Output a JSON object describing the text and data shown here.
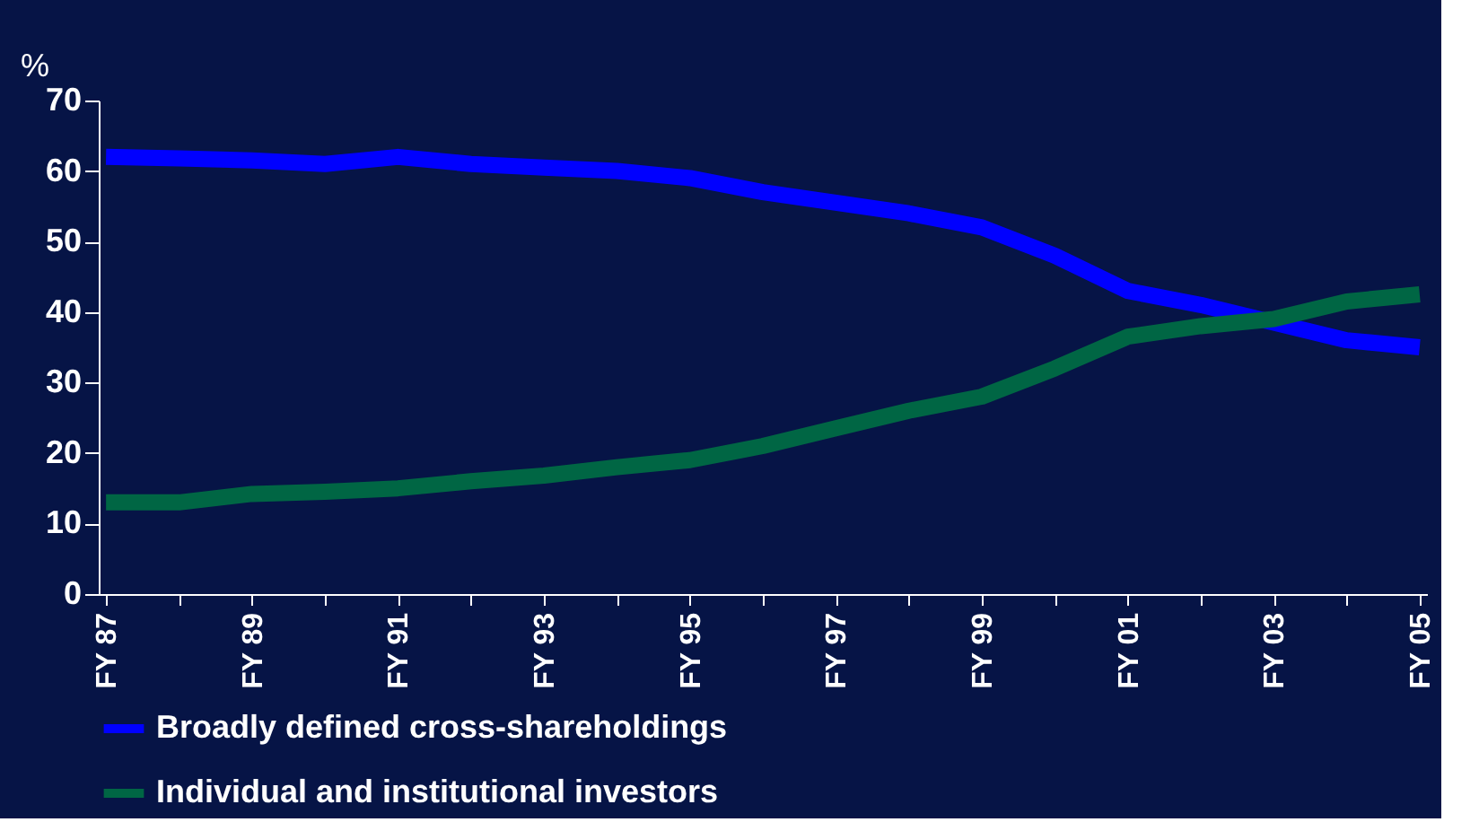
{
  "chart_data": {
    "type": "line",
    "ylabel": "%",
    "categories": [
      "FY 87",
      null,
      "FY 89",
      null,
      "FY 91",
      null,
      "FY 93",
      null,
      "FY 95",
      null,
      "FY 97",
      null,
      "FY 99",
      null,
      "FY 01",
      null,
      "FY 03",
      null,
      "FY 05"
    ],
    "series": [
      {
        "name": "Broadly defined cross-shareholdings",
        "color": "#0000ff",
        "values": [
          62,
          61.8,
          61.5,
          61,
          62,
          61,
          60.5,
          60,
          59,
          57,
          55.5,
          54,
          52,
          48,
          43,
          41,
          38.5,
          36,
          35
        ]
      },
      {
        "name": "Individual and institutional investors",
        "color": "#006644",
        "values": [
          13,
          13,
          14.2,
          14.5,
          15,
          16,
          16.8,
          18,
          19,
          21,
          23.5,
          26,
          28,
          32,
          36.5,
          38,
          39,
          41.5,
          42.5
        ]
      }
    ],
    "ylim": [
      0,
      70
    ],
    "yticks": [
      0,
      10,
      20,
      30,
      40,
      50,
      60,
      70
    ],
    "grid": false,
    "legend": "bottom",
    "marker": "none",
    "line_style": "solid"
  }
}
